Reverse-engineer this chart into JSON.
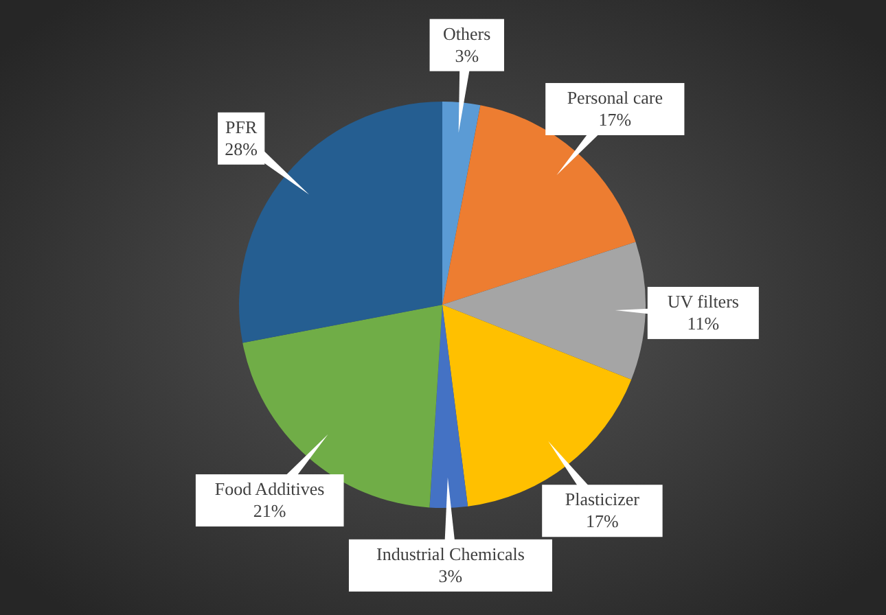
{
  "chart_data": {
    "type": "pie",
    "categories": [
      "Others",
      "Personal care",
      "UV filters",
      "Plasticizer",
      "Industrial Chemicals",
      "Food Additives",
      "PFR"
    ],
    "values": [
      3,
      17,
      11,
      17,
      3,
      21,
      28
    ],
    "colors": [
      "#5b9bd5",
      "#ed7d31",
      "#a5a5a5",
      "#ffc000",
      "#4472c4",
      "#70ad47",
      "#255e91"
    ],
    "value_labels": [
      "3%",
      "17%",
      "11%",
      "17%",
      "3%",
      "21%",
      "28%"
    ]
  }
}
